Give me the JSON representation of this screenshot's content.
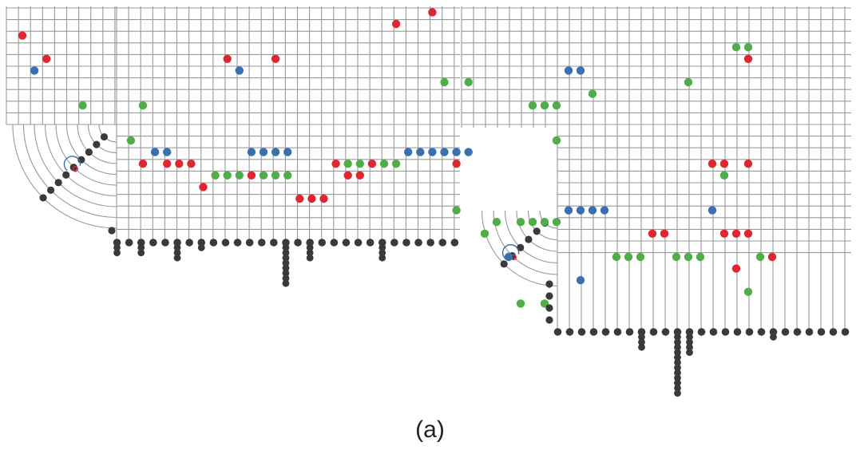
{
  "caption": "(a)",
  "colors": {
    "grid": "#9a9a9a",
    "red": "#e0262f",
    "blue": "#3a6fb0",
    "green": "#4fae48",
    "black": "#3a3a3a",
    "spiral": "#3a6fb0"
  },
  "panels": [
    {
      "id": "left",
      "grid_cols": 38,
      "grid_rows": 20,
      "corner_arcs": 9,
      "dots": [
        [
          "red",
          0,
          3
        ],
        [
          "blue",
          1,
          6
        ],
        [
          "red",
          2,
          5
        ],
        [
          "red",
          31,
          2
        ],
        [
          "red",
          34,
          1
        ],
        [
          "red",
          17,
          5
        ],
        [
          "blue",
          18,
          6
        ],
        [
          "red",
          21,
          5
        ],
        [
          "green",
          5,
          9
        ],
        [
          "green",
          10,
          9
        ],
        [
          "green",
          35,
          7
        ],
        [
          "green",
          37,
          7
        ],
        [
          "green",
          9,
          12
        ],
        [
          "blue",
          11,
          13
        ],
        [
          "blue",
          12,
          13
        ],
        [
          "blue",
          19,
          13
        ],
        [
          "blue",
          20,
          13
        ],
        [
          "blue",
          21,
          13
        ],
        [
          "blue",
          22,
          13
        ],
        [
          "blue",
          32,
          13
        ],
        [
          "blue",
          33,
          13
        ],
        [
          "blue",
          34,
          13
        ],
        [
          "blue",
          35,
          13
        ],
        [
          "blue",
          36,
          13
        ],
        [
          "blue",
          37,
          13
        ],
        [
          "red",
          10,
          14
        ],
        [
          "red",
          12,
          14
        ],
        [
          "red",
          13,
          14
        ],
        [
          "red",
          14,
          14
        ],
        [
          "red",
          26,
          14
        ],
        [
          "green",
          27,
          14
        ],
        [
          "green",
          28,
          14
        ],
        [
          "red",
          29,
          14
        ],
        [
          "green",
          30,
          14
        ],
        [
          "green",
          31,
          14
        ],
        [
          "red",
          36,
          14
        ],
        [
          "green",
          16,
          15
        ],
        [
          "green",
          17,
          15
        ],
        [
          "green",
          18,
          15
        ],
        [
          "red",
          19,
          15
        ],
        [
          "green",
          20,
          15
        ],
        [
          "green",
          21,
          15
        ],
        [
          "green",
          22,
          15
        ],
        [
          "red",
          27,
          15
        ],
        [
          "red",
          28,
          15
        ],
        [
          "red",
          15,
          16
        ],
        [
          "red",
          23,
          17
        ],
        [
          "red",
          24,
          17
        ],
        [
          "red",
          25,
          17
        ],
        [
          "green",
          36,
          18
        ]
      ],
      "stacks": [
        [
          0,
          2
        ],
        [
          2,
          2
        ],
        [
          5,
          3
        ],
        [
          7,
          1
        ],
        [
          14,
          8
        ],
        [
          16,
          3
        ],
        [
          22,
          3
        ]
      ]
    },
    {
      "id": "right",
      "grid_cols": 25,
      "grid_rows": 22,
      "corner_arcs": 6,
      "dots": [
        [
          "green",
          21,
          4
        ],
        [
          "green",
          22,
          4
        ],
        [
          "red",
          22,
          5
        ],
        [
          "blue",
          7,
          6
        ],
        [
          "blue",
          8,
          6
        ],
        [
          "green",
          17,
          7
        ],
        [
          "green",
          9,
          8
        ],
        [
          "green",
          4,
          9
        ],
        [
          "green",
          5,
          9
        ],
        [
          "green",
          6,
          9
        ],
        [
          "green",
          6,
          12
        ],
        [
          "red",
          19,
          14
        ],
        [
          "red",
          20,
          14
        ],
        [
          "red",
          22,
          14
        ],
        [
          "green",
          20,
          15
        ],
        [
          "blue",
          7,
          18
        ],
        [
          "blue",
          8,
          18
        ],
        [
          "blue",
          9,
          18
        ],
        [
          "blue",
          10,
          18
        ],
        [
          "blue",
          19,
          18
        ],
        [
          "green",
          1,
          19
        ],
        [
          "green",
          3,
          19
        ],
        [
          "green",
          4,
          19
        ],
        [
          "green",
          5,
          19
        ],
        [
          "green",
          6,
          19
        ],
        [
          "green",
          0,
          20
        ],
        [
          "red",
          14,
          20
        ],
        [
          "red",
          15,
          20
        ],
        [
          "red",
          20,
          20
        ],
        [
          "red",
          21,
          20
        ],
        [
          "red",
          22,
          20
        ],
        [
          "blue",
          2,
          22
        ],
        [
          "green",
          11,
          22
        ],
        [
          "green",
          12,
          22
        ],
        [
          "green",
          13,
          22
        ],
        [
          "green",
          16,
          22
        ],
        [
          "green",
          17,
          22
        ],
        [
          "green",
          18,
          22
        ],
        [
          "green",
          23,
          22
        ],
        [
          "red",
          24,
          22
        ],
        [
          "red",
          21,
          23
        ],
        [
          "blue",
          8,
          24
        ],
        [
          "green",
          22,
          25
        ],
        [
          "green",
          3,
          26
        ],
        [
          "green",
          5,
          26
        ]
      ],
      "stacks": [
        [
          7,
          3
        ],
        [
          10,
          12
        ],
        [
          11,
          4
        ],
        [
          18,
          1
        ]
      ]
    }
  ]
}
